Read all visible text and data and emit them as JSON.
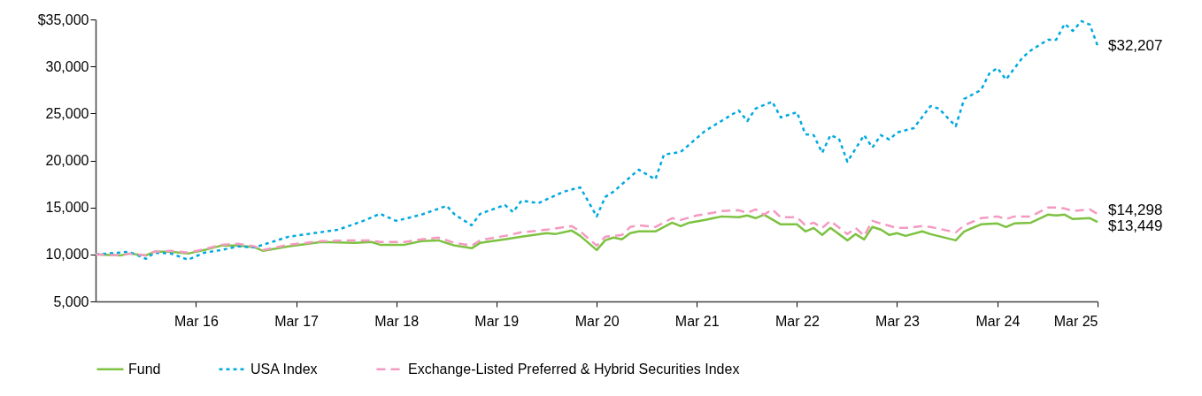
{
  "chart_data": {
    "type": "line",
    "xlim": [
      "2015-03",
      "2025-03"
    ],
    "xticks": [
      {
        "value": "2016-03",
        "label": "Mar 16"
      },
      {
        "value": "2017-03",
        "label": "Mar 17"
      },
      {
        "value": "2018-03",
        "label": "Mar 18"
      },
      {
        "value": "2019-03",
        "label": "Mar 19"
      },
      {
        "value": "2020-03",
        "label": "Mar 20"
      },
      {
        "value": "2021-03",
        "label": "Mar 21"
      },
      {
        "value": "2022-03",
        "label": "Mar 22"
      },
      {
        "value": "2023-03",
        "label": "Mar 23"
      },
      {
        "value": "2024-03",
        "label": "Mar 24"
      },
      {
        "value": "2025-03",
        "label": "Mar 25"
      }
    ],
    "ylim": [
      5000,
      35000
    ],
    "yticks": [
      {
        "value": 5000,
        "label": "5,000"
      },
      {
        "value": 10000,
        "label": "10,000"
      },
      {
        "value": 15000,
        "label": "15,000"
      },
      {
        "value": 20000,
        "label": "20,000"
      },
      {
        "value": 25000,
        "label": "25,000"
      },
      {
        "value": 30000,
        "label": "30,000"
      },
      {
        "value": 35000,
        "label": "$35,000"
      }
    ],
    "grid": false,
    "legend": "bottom",
    "series": [
      {
        "name": "Fund",
        "color": "#7dc241",
        "line_style": "solid",
        "x": [
          "2015-03",
          "2015-06",
          "2015-07",
          "2015-09",
          "2015-10",
          "2015-12",
          "2016-02",
          "2016-04",
          "2016-06",
          "2016-08",
          "2016-10",
          "2016-11",
          "2017-02",
          "2017-06",
          "2017-10",
          "2017-12",
          "2018-01",
          "2018-04",
          "2018-06",
          "2018-08",
          "2018-10",
          "2018-12",
          "2019-01",
          "2019-04",
          "2019-06",
          "2019-09",
          "2019-10",
          "2019-12",
          "2020-01",
          "2020-03",
          "2020-04",
          "2020-05",
          "2020-06",
          "2020-07",
          "2020-08",
          "2020-10",
          "2020-12",
          "2021-01",
          "2021-02",
          "2021-04",
          "2021-05",
          "2021-06",
          "2021-08",
          "2021-09",
          "2021-10",
          "2021-11",
          "2022-01",
          "2022-03",
          "2022-04",
          "2022-05",
          "2022-06",
          "2022-07",
          "2022-09",
          "2022-10",
          "2022-11",
          "2022-12",
          "2023-01",
          "2023-02",
          "2023-03",
          "2023-04",
          "2023-06",
          "2023-07",
          "2023-10",
          "2023-11",
          "2024-01",
          "2024-03",
          "2024-04",
          "2024-05",
          "2024-07",
          "2024-09",
          "2024-10",
          "2024-11",
          "2024-12",
          "2025-02",
          "2025-03"
        ],
        "values": [
          10000,
          9900,
          10090,
          9900,
          10280,
          10280,
          10090,
          10470,
          10940,
          10940,
          10750,
          10380,
          10850,
          11320,
          11220,
          11320,
          11030,
          11030,
          11410,
          11500,
          10940,
          10660,
          11220,
          11600,
          11880,
          12260,
          12160,
          12540,
          11970,
          10470,
          11500,
          11790,
          11600,
          12260,
          12450,
          12450,
          13380,
          13010,
          13380,
          13670,
          13860,
          14040,
          13950,
          14140,
          13860,
          14230,
          13200,
          13200,
          12450,
          12820,
          12070,
          12820,
          11500,
          12160,
          11600,
          12920,
          12640,
          12070,
          12260,
          11970,
          12450,
          12160,
          11500,
          12450,
          13200,
          13290,
          12920,
          13290,
          13380,
          14230,
          14140,
          14230,
          13760,
          13860,
          13449
        ],
        "value_labels": [
          null,
          null,
          null,
          null,
          null,
          null,
          null,
          null,
          null,
          null,
          null,
          null,
          null,
          null,
          null,
          null,
          null,
          null,
          null,
          null,
          null,
          null,
          null,
          null,
          null,
          null,
          null,
          null,
          null,
          null,
          null,
          null,
          null,
          null,
          null,
          null,
          null,
          null,
          null,
          null,
          null,
          null,
          null,
          null,
          null,
          null,
          null,
          null,
          null,
          null,
          null,
          null,
          null,
          null,
          null,
          null,
          null,
          null,
          null,
          null,
          null,
          null,
          null,
          null,
          null,
          null,
          null,
          null,
          null,
          null,
          null,
          null,
          null,
          null,
          "$13,449"
        ]
      },
      {
        "name": "USA Index",
        "color": "#00a9e0",
        "line_style": "dotted",
        "x": [
          "2015-03",
          "2015-07",
          "2015-09",
          "2015-10",
          "2015-12",
          "2016-02",
          "2016-04",
          "2016-06",
          "2016-08",
          "2016-10",
          "2017-02",
          "2017-08",
          "2017-11",
          "2018-01",
          "2018-03",
          "2018-06",
          "2018-09",
          "2018-10",
          "2018-12",
          "2019-01",
          "2019-04",
          "2019-05",
          "2019-06",
          "2019-08",
          "2019-11",
          "2020-01",
          "2020-03",
          "2020-04",
          "2020-05",
          "2020-08",
          "2020-10",
          "2020-11",
          "2021-01",
          "2021-04",
          "2021-08",
          "2021-09",
          "2021-10",
          "2021-12",
          "2022-01",
          "2022-03",
          "2022-04",
          "2022-05",
          "2022-06",
          "2022-07",
          "2022-08",
          "2022-09",
          "2022-11",
          "2022-12",
          "2023-01",
          "2023-02",
          "2023-03",
          "2023-05",
          "2023-07",
          "2023-08",
          "2023-10",
          "2023-11",
          "2024-01",
          "2024-02",
          "2024-03",
          "2024-04",
          "2024-06",
          "2024-07",
          "2024-09",
          "2024-10",
          "2024-11",
          "2024-12",
          "2025-01",
          "2025-02",
          "2025-03"
        ],
        "values": [
          10000,
          10280,
          9530,
          10190,
          10090,
          9440,
          10190,
          10470,
          10850,
          10750,
          11880,
          12630,
          13570,
          14320,
          13570,
          14230,
          15170,
          14230,
          13100,
          14320,
          15260,
          14510,
          15730,
          15450,
          16670,
          17140,
          14040,
          16110,
          16670,
          19020,
          17990,
          20620,
          20900,
          23160,
          25320,
          24190,
          25510,
          26260,
          24570,
          25130,
          22780,
          22690,
          20810,
          22690,
          22320,
          19870,
          22690,
          21370,
          22690,
          22220,
          22970,
          23440,
          25790,
          25510,
          23630,
          26550,
          27490,
          29270,
          29830,
          28610,
          30960,
          31710,
          32840,
          32840,
          34530,
          33780,
          34820,
          34440,
          32207
        ],
        "value_labels": [
          null,
          null,
          null,
          null,
          null,
          null,
          null,
          null,
          null,
          null,
          null,
          null,
          null,
          null,
          null,
          null,
          null,
          null,
          null,
          null,
          null,
          null,
          null,
          null,
          null,
          null,
          null,
          null,
          null,
          null,
          null,
          null,
          null,
          null,
          null,
          null,
          null,
          null,
          null,
          null,
          null,
          null,
          null,
          null,
          null,
          null,
          null,
          null,
          null,
          null,
          null,
          null,
          null,
          null,
          null,
          null,
          null,
          null,
          null,
          null,
          null,
          null,
          null,
          null,
          null,
          null,
          null,
          null,
          "$32,207"
        ]
      },
      {
        "name": "Exchange-Listed Preferred & Hybrid Securities Index",
        "color": "#f49ac1",
        "line_style": "dashed",
        "x": [
          "2015-03",
          "2015-06",
          "2015-07",
          "2015-09",
          "2015-10",
          "2015-12",
          "2016-02",
          "2016-04",
          "2016-06",
          "2016-08",
          "2016-10",
          "2016-11",
          "2017-02",
          "2017-06",
          "2017-10",
          "2017-12",
          "2018-01",
          "2018-04",
          "2018-06",
          "2018-08",
          "2018-10",
          "2018-12",
          "2019-01",
          "2019-04",
          "2019-06",
          "2019-09",
          "2019-12",
          "2020-01",
          "2020-03",
          "2020-04",
          "2020-06",
          "2020-07",
          "2020-08",
          "2020-10",
          "2020-12",
          "2021-01",
          "2021-03",
          "2021-06",
          "2021-08",
          "2021-09",
          "2021-10",
          "2021-11",
          "2021-12",
          "2022-01",
          "2022-03",
          "2022-04",
          "2022-05",
          "2022-06",
          "2022-07",
          "2022-09",
          "2022-10",
          "2022-11",
          "2022-12",
          "2023-01",
          "2023-03",
          "2023-04",
          "2023-06",
          "2023-07",
          "2023-10",
          "2023-11",
          "2024-01",
          "2024-03",
          "2024-04",
          "2024-05",
          "2024-07",
          "2024-09",
          "2024-10",
          "2024-11",
          "2024-12",
          "2025-02",
          "2025-03"
        ],
        "values": [
          10000,
          9900,
          10090,
          9900,
          10280,
          10380,
          10190,
          10570,
          11030,
          11130,
          10850,
          10470,
          11030,
          11410,
          11500,
          11500,
          11320,
          11320,
          11600,
          11790,
          11220,
          10940,
          11500,
          11970,
          12350,
          12630,
          13010,
          12450,
          10940,
          11880,
          12070,
          12920,
          13100,
          12920,
          13860,
          13670,
          14140,
          14610,
          14700,
          14420,
          14790,
          14230,
          14790,
          13950,
          13950,
          13100,
          13380,
          12820,
          13570,
          12160,
          12820,
          11970,
          13570,
          13290,
          12820,
          12820,
          13010,
          12920,
          12350,
          13100,
          13860,
          14040,
          13760,
          14040,
          14040,
          14990,
          14990,
          14890,
          14610,
          14790,
          14298
        ],
        "value_labels": [
          null,
          null,
          null,
          null,
          null,
          null,
          null,
          null,
          null,
          null,
          null,
          null,
          null,
          null,
          null,
          null,
          null,
          null,
          null,
          null,
          null,
          null,
          null,
          null,
          null,
          null,
          null,
          null,
          null,
          null,
          null,
          null,
          null,
          null,
          null,
          null,
          null,
          null,
          null,
          null,
          null,
          null,
          null,
          null,
          null,
          null,
          null,
          null,
          null,
          null,
          null,
          null,
          null,
          null,
          null,
          null,
          null,
          null,
          null,
          null,
          null,
          null,
          null,
          null,
          null,
          null,
          null,
          null,
          null,
          null,
          "$14,298"
        ]
      }
    ]
  }
}
